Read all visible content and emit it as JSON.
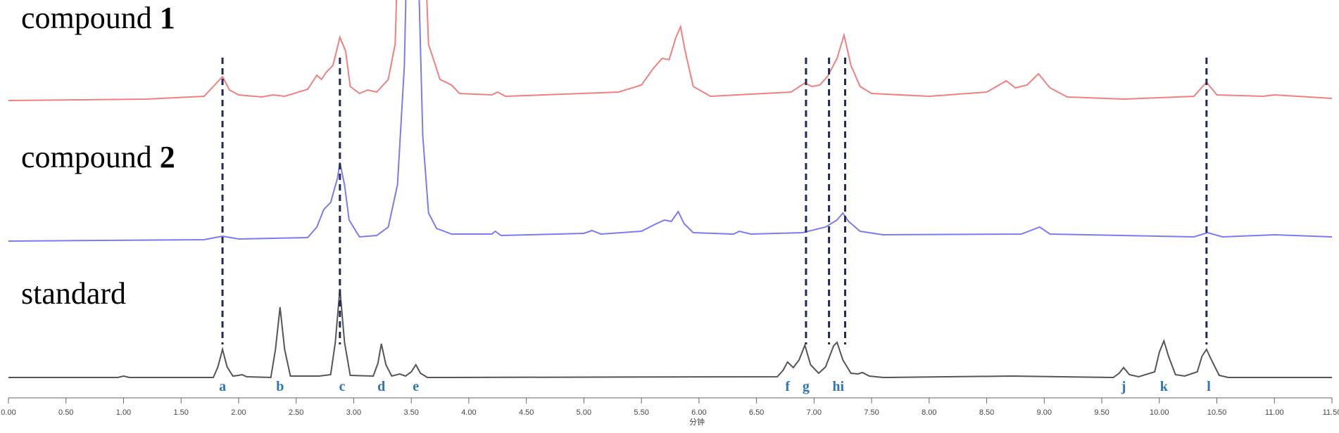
{
  "chart_data": {
    "type": "line",
    "x_label": "分钟",
    "xlim": [
      0,
      11.5
    ],
    "xticks": [
      {
        "value": 0,
        "label": "0.00"
      },
      {
        "value": 0.5,
        "label": "0.50"
      },
      {
        "value": 1,
        "label": "1.00"
      },
      {
        "value": 1.5,
        "label": "1.50"
      },
      {
        "value": 2,
        "label": "2.00"
      },
      {
        "value": 2.5,
        "label": "2.50"
      },
      {
        "value": 3,
        "label": "3.00"
      },
      {
        "value": 3.5,
        "label": "3.50"
      },
      {
        "value": 4,
        "label": "4.00"
      },
      {
        "value": 4.5,
        "label": "4.50"
      },
      {
        "value": 5,
        "label": "5.00"
      },
      {
        "value": 5.5,
        "label": "5.50"
      },
      {
        "value": 6,
        "label": "6.00"
      },
      {
        "value": 6.5,
        "label": "6.50"
      },
      {
        "value": 7,
        "label": "7.00"
      },
      {
        "value": 7.5,
        "label": "7.50"
      },
      {
        "value": 8,
        "label": "8.00"
      },
      {
        "value": 8.5,
        "label": "8.50"
      },
      {
        "value": 9,
        "label": "9.00"
      },
      {
        "value": 9.5,
        "label": "9.50"
      },
      {
        "value": 10,
        "label": "10.00"
      },
      {
        "value": 10.5,
        "label": "10.50"
      },
      {
        "value": 11,
        "label": "11.00"
      },
      {
        "value": 11.5,
        "label": "11.50"
      }
    ],
    "series": [
      {
        "name": "compound",
        "number": "1",
        "color": "#f08080",
        "x": [
          0,
          1.2,
          1.7,
          1.78,
          1.86,
          1.92,
          2.0,
          2.2,
          2.3,
          2.4,
          2.6,
          2.68,
          2.72,
          2.76,
          2.82,
          2.88,
          2.93,
          2.97,
          3.05,
          3.12,
          3.2,
          3.3,
          3.36,
          3.4,
          3.46,
          3.58,
          3.6,
          3.65,
          3.75,
          3.85,
          3.92,
          4.2,
          4.25,
          4.32,
          5.3,
          5.5,
          5.6,
          5.68,
          5.74,
          5.8,
          5.84,
          5.88,
          5.95,
          6.1,
          6.8,
          6.92,
          6.98,
          7.05,
          7.12,
          7.2,
          7.26,
          7.32,
          7.4,
          7.5,
          8.0,
          8.5,
          8.67,
          8.75,
          8.85,
          8.95,
          9.05,
          9.2,
          9.7,
          10.3,
          10.41,
          10.5,
          10.9,
          11.0,
          11.5
        ],
        "values": [
          0,
          2,
          6,
          20,
          34,
          15,
          8,
          5,
          8,
          6,
          16,
          36,
          30,
          40,
          50,
          90,
          70,
          20,
          10,
          15,
          12,
          30,
          80,
          300,
          900,
          900,
          300,
          80,
          30,
          22,
          10,
          8,
          12,
          6,
          12,
          22,
          45,
          60,
          58,
          90,
          105,
          70,
          20,
          6,
          12,
          25,
          20,
          22,
          35,
          60,
          93,
          50,
          20,
          10,
          6,
          12,
          28,
          18,
          22,
          38,
          18,
          5,
          2,
          6,
          26,
          8,
          6,
          8,
          3
        ]
      },
      {
        "name": "compound",
        "number": "2",
        "color": "#7b7bf0",
        "x": [
          0,
          1.7,
          1.86,
          2.0,
          2.6,
          2.68,
          2.74,
          2.8,
          2.86,
          2.88,
          2.92,
          2.96,
          3.05,
          3.2,
          3.3,
          3.38,
          3.44,
          3.5,
          3.56,
          3.6,
          3.65,
          3.72,
          3.85,
          4.2,
          4.23,
          4.28,
          5.0,
          5.07,
          5.15,
          5.5,
          5.62,
          5.7,
          5.76,
          5.82,
          5.87,
          5.95,
          6.3,
          6.35,
          6.45,
          6.9,
          7.1,
          7.2,
          7.25,
          7.3,
          7.4,
          7.6,
          8.8,
          8.96,
          9.05,
          10.3,
          10.42,
          10.55,
          11.0,
          11.5
        ],
        "values": [
          0,
          2,
          7,
          3,
          5,
          20,
          45,
          55,
          90,
          112,
          80,
          30,
          6,
          8,
          20,
          80,
          250,
          700,
          400,
          150,
          40,
          18,
          10,
          10,
          14,
          8,
          11,
          15,
          10,
          14,
          24,
          30,
          28,
          42,
          25,
          12,
          10,
          14,
          10,
          12,
          20,
          30,
          40,
          28,
          14,
          9,
          10,
          20,
          10,
          6,
          12,
          6,
          9,
          6
        ]
      },
      {
        "name": "standard",
        "color": "#555555",
        "x": [
          0,
          0.95,
          1.0,
          1.05,
          1.78,
          1.82,
          1.86,
          1.9,
          1.95,
          2.0,
          2.03,
          2.07,
          2.28,
          2.32,
          2.36,
          2.4,
          2.45,
          2.7,
          2.8,
          2.84,
          2.88,
          2.92,
          2.97,
          3.17,
          3.21,
          3.24,
          3.28,
          3.33,
          3.4,
          3.45,
          3.5,
          3.54,
          3.58,
          3.64,
          6.68,
          6.73,
          6.77,
          6.82,
          6.87,
          6.92,
          6.97,
          7.04,
          7.1,
          7.17,
          7.2,
          7.25,
          7.32,
          7.38,
          7.42,
          7.48,
          7.6,
          8.72,
          9.6,
          9.65,
          9.69,
          9.74,
          9.82,
          9.96,
          10.0,
          10.04,
          10.08,
          10.14,
          10.22,
          10.33,
          10.37,
          10.41,
          10.45,
          10.52,
          10.6,
          11.5
        ],
        "values": [
          0,
          0,
          2,
          0,
          0,
          15,
          40,
          15,
          2,
          3,
          4,
          1,
          0,
          40,
          100,
          40,
          2,
          2,
          4,
          50,
          126,
          50,
          3,
          2,
          20,
          48,
          18,
          2,
          5,
          2,
          8,
          18,
          6,
          0,
          1,
          10,
          22,
          14,
          25,
          46,
          18,
          6,
          15,
          45,
          50,
          25,
          6,
          5,
          7,
          2,
          0,
          2,
          0,
          6,
          14,
          4,
          1,
          8,
          36,
          52,
          30,
          4,
          2,
          8,
          30,
          40,
          26,
          3,
          0,
          0
        ]
      }
    ],
    "peaks": [
      {
        "label": "a",
        "x": 1.86
      },
      {
        "label": "b",
        "x": 2.36
      },
      {
        "label": "c",
        "x": 2.9
      },
      {
        "label": "d",
        "x": 3.24
      },
      {
        "label": "e",
        "x": 3.54
      },
      {
        "label": "f",
        "x": 6.77
      },
      {
        "label": "g",
        "x": 6.93
      },
      {
        "label": "hi",
        "x": 7.21
      },
      {
        "label": "j",
        "x": 9.69
      },
      {
        "label": "k",
        "x": 10.04
      },
      {
        "label": "l",
        "x": 10.43
      }
    ],
    "guides": [
      1.86,
      2.88,
      6.93,
      7.13,
      7.27,
      10.41
    ],
    "peak_label_color": "#2e75b6"
  }
}
